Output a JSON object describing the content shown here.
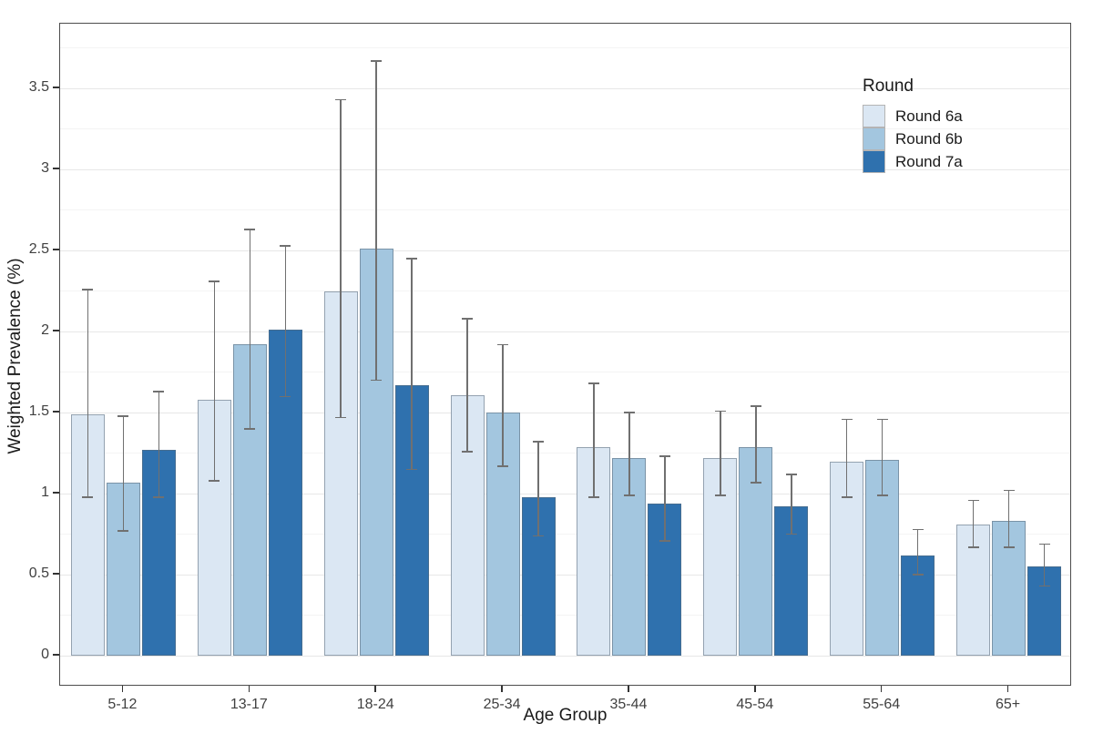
{
  "chart_data": {
    "type": "bar",
    "title": "",
    "xlabel": "Age Group",
    "ylabel": "Weighted Prevalence (%)",
    "categories": [
      "5-12",
      "13-17",
      "18-24",
      "25-34",
      "35-44",
      "45-54",
      "55-64",
      "65+"
    ],
    "series": [
      {
        "name": "Round 6a",
        "color": "#dbe7f3",
        "values": [
          1.49,
          1.58,
          2.25,
          1.61,
          1.29,
          1.22,
          1.2,
          0.81
        ],
        "ci_low": [
          0.98,
          1.08,
          1.47,
          1.26,
          0.98,
          0.99,
          0.98,
          0.67
        ],
        "ci_high": [
          2.26,
          2.31,
          3.43,
          2.08,
          1.68,
          1.51,
          1.46,
          0.96
        ]
      },
      {
        "name": "Round 6b",
        "color": "#a3c6df",
        "values": [
          1.07,
          1.92,
          2.51,
          1.5,
          1.22,
          1.29,
          1.21,
          0.83
        ],
        "ci_low": [
          0.77,
          1.4,
          1.7,
          1.17,
          0.99,
          1.07,
          0.99,
          0.67
        ],
        "ci_high": [
          1.48,
          2.63,
          3.67,
          1.92,
          1.5,
          1.54,
          1.46,
          1.02
        ]
      },
      {
        "name": "Round 7a",
        "color": "#2f71ae",
        "values": [
          1.27,
          2.01,
          1.67,
          0.98,
          0.94,
          0.92,
          0.62,
          0.55
        ],
        "ci_low": [
          0.98,
          1.6,
          1.15,
          0.74,
          0.71,
          0.75,
          0.5,
          0.43
        ],
        "ci_high": [
          1.63,
          2.53,
          2.45,
          1.32,
          1.23,
          1.12,
          0.78,
          0.69
        ]
      }
    ],
    "ylim": [
      -0.19,
      3.9
    ],
    "yticks": [
      0,
      0.5,
      1,
      1.5,
      2,
      2.5,
      3,
      3.5
    ],
    "ytick_labels": [
      "0",
      "0.5",
      "1",
      "1.5",
      "2",
      "2.5",
      "3",
      "3.5"
    ],
    "minor_grid_step": 0.25,
    "grid": true,
    "legend_position": "inside-top-right",
    "error_bars": "95% CI whiskers with caps"
  },
  "legend": {
    "title": "Round",
    "entries": [
      "Round 6a",
      "Round 6b",
      "Round 7a"
    ]
  },
  "colors": {
    "round_6a": "#dbe7f3",
    "round_6b": "#a3c6df",
    "round_7a": "#2f71ae",
    "error_bar": "#707070",
    "panel_border": "#4d4d4d",
    "grid_major": "#e7e7e7",
    "grid_minor": "#f4f4f4",
    "axis_text": "#404040"
  }
}
